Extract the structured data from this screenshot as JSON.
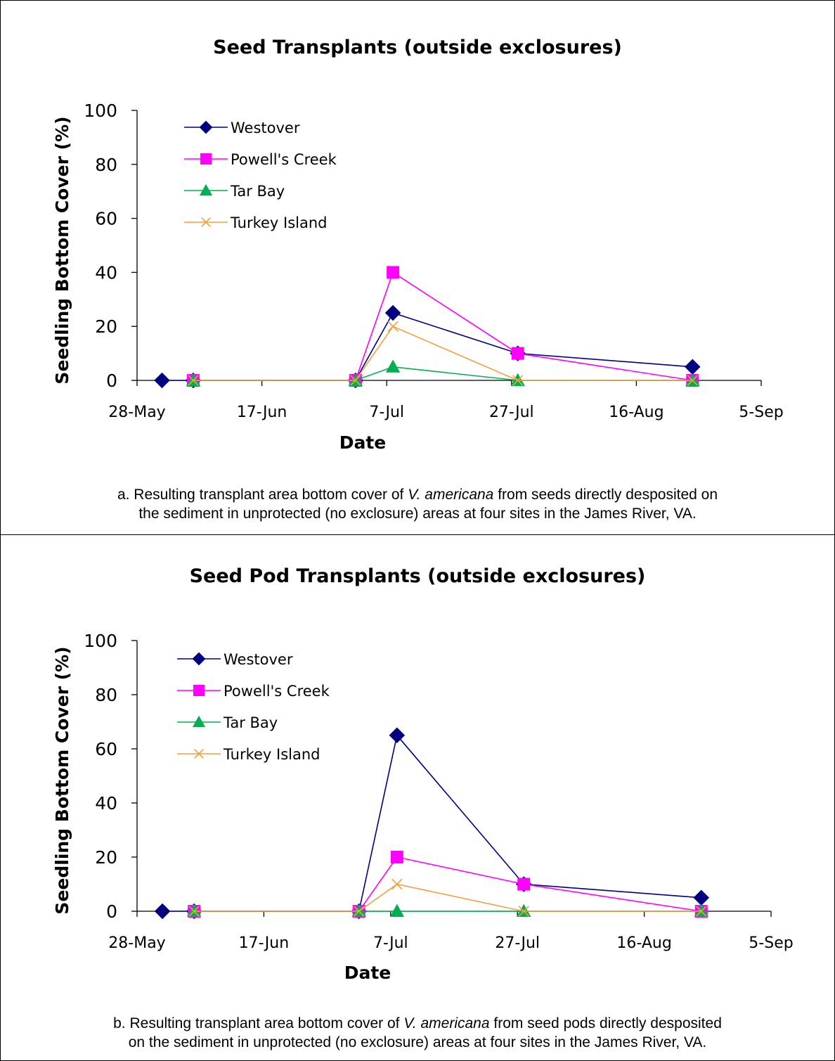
{
  "colors": {
    "Westover": "#000080",
    "Powell's Creek": "#FF00FF",
    "Tar Bay": "#00B050",
    "Turkey Island": "#F0A040"
  },
  "chart_data": [
    {
      "type": "line",
      "title": "Seed Transplants (outside exclosures)",
      "xlabel": "Date",
      "ylabel": "Seedling Bottom Cover (%)",
      "xticks": [
        "28-May",
        "17-Jun",
        "7-Jul",
        "27-Jul",
        "16-Aug",
        "5-Sep"
      ],
      "xlim": [
        "28-May",
        "5-Sep"
      ],
      "ylim": [
        0,
        100
      ],
      "yticks": [
        0,
        20,
        40,
        60,
        80,
        100
      ],
      "legend": "top-left",
      "markers": [
        "diamond",
        "square",
        "triangle",
        "x"
      ],
      "series": [
        {
          "name": "Westover",
          "x": [
            "1-Jun",
            "6-Jun",
            "2-Jul",
            "8-Jul",
            "28-Jul",
            "25-Aug"
          ],
          "y": [
            0,
            0,
            0,
            25,
            10,
            5
          ]
        },
        {
          "name": "Powell's Creek",
          "x": [
            "6-Jun",
            "2-Jul",
            "8-Jul",
            "28-Jul",
            "25-Aug"
          ],
          "y": [
            0,
            0,
            40,
            10,
            0
          ]
        },
        {
          "name": "Tar Bay",
          "x": [
            "6-Jun",
            "2-Jul",
            "8-Jul",
            "28-Jul",
            "25-Aug"
          ],
          "y": [
            0,
            0,
            5,
            0,
            0
          ]
        },
        {
          "name": "Turkey Island",
          "x": [
            "6-Jun",
            "2-Jul",
            "8-Jul",
            "28-Jul",
            "25-Aug"
          ],
          "y": [
            0,
            0,
            20,
            0,
            0
          ]
        }
      ]
    },
    {
      "type": "line",
      "title": "Seed Pod Transplants (outside exclosures)",
      "xlabel": "Date",
      "ylabel": "Seedling Bottom Cover (%)",
      "xticks": [
        "28-May",
        "17-Jun",
        "7-Jul",
        "27-Jul",
        "16-Aug",
        "5-Sep"
      ],
      "xlim": [
        "28-May",
        "5-Sep"
      ],
      "ylim": [
        0,
        100
      ],
      "yticks": [
        0,
        20,
        40,
        60,
        80,
        100
      ],
      "legend": "top-left",
      "markers": [
        "diamond",
        "square",
        "triangle",
        "x"
      ],
      "series": [
        {
          "name": "Westover",
          "x": [
            "1-Jun",
            "6-Jun",
            "2-Jul",
            "8-Jul",
            "28-Jul",
            "25-Aug"
          ],
          "y": [
            0,
            0,
            0,
            65,
            10,
            5
          ]
        },
        {
          "name": "Powell's Creek",
          "x": [
            "6-Jun",
            "2-Jul",
            "8-Jul",
            "28-Jul",
            "25-Aug"
          ],
          "y": [
            0,
            0,
            20,
            10,
            0
          ]
        },
        {
          "name": "Tar Bay",
          "x": [
            "6-Jun",
            "2-Jul",
            "8-Jul",
            "28-Jul",
            "25-Aug"
          ],
          "y": [
            0,
            0,
            0,
            0,
            0
          ]
        },
        {
          "name": "Turkey Island",
          "x": [
            "6-Jun",
            "2-Jul",
            "8-Jul",
            "28-Jul",
            "25-Aug"
          ],
          "y": [
            0,
            0,
            10,
            0,
            0
          ]
        }
      ]
    }
  ],
  "captions": [
    {
      "line1_before": "a. Resulting transplant area bottom cover of ",
      "species": "V. americana",
      "line1_after": " from seeds directly desposited on",
      "line2": "the sediment in unprotected (no exclosure) areas at four sites in the James River, VA."
    },
    {
      "line1_before": "b. Resulting transplant area bottom cover of ",
      "species": "V. americana",
      "line1_after": " from seed pods directly desposited",
      "line2": "on the sediment in unprotected (no exclosure) areas at four sites in the James River, VA."
    }
  ]
}
